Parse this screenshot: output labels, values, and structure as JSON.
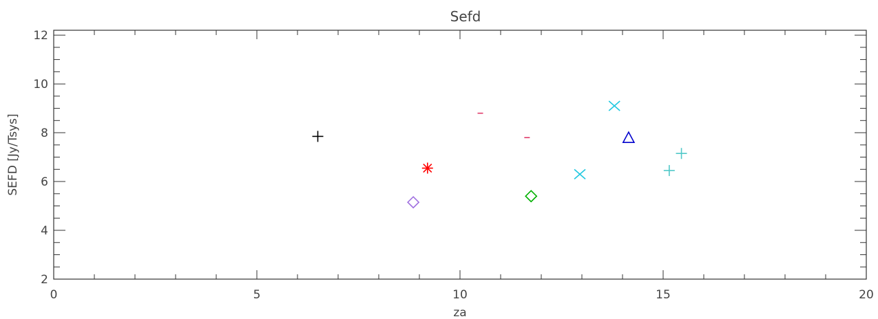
{
  "chart_data": {
    "type": "scatter",
    "title": "Sefd",
    "xlabel": "za",
    "ylabel": "SEFD [Jy/Tsys]",
    "xlim": [
      0,
      20
    ],
    "ylim": [
      2,
      12.2
    ],
    "x_ticks": [
      "0",
      "5",
      "10",
      "15",
      "20"
    ],
    "y_ticks": [
      "2",
      "4",
      "6",
      "8",
      "10",
      "12"
    ],
    "grid": false,
    "legend": "none",
    "points": [
      {
        "x": 6.5,
        "y": 7.85,
        "symbol": "plus",
        "color": "#000000"
      },
      {
        "x": 8.85,
        "y": 5.15,
        "symbol": "diamond",
        "color": "#a070e0"
      },
      {
        "x": 9.2,
        "y": 6.55,
        "symbol": "asterisk",
        "color": "#ff0000"
      },
      {
        "x": 10.5,
        "y": 8.8,
        "symbol": "dash",
        "color": "#e03a6a"
      },
      {
        "x": 11.65,
        "y": 7.8,
        "symbol": "dash",
        "color": "#e03a6a"
      },
      {
        "x": 11.75,
        "y": 5.4,
        "symbol": "diamond",
        "color": "#00b000"
      },
      {
        "x": 12.95,
        "y": 6.3,
        "symbol": "x",
        "color": "#20c8e0"
      },
      {
        "x": 13.8,
        "y": 9.1,
        "symbol": "x",
        "color": "#20c8e0"
      },
      {
        "x": 14.15,
        "y": 7.8,
        "symbol": "triangle",
        "color": "#0000cc"
      },
      {
        "x": 15.15,
        "y": 6.45,
        "symbol": "plus",
        "color": "#50c8c8"
      },
      {
        "x": 15.45,
        "y": 7.15,
        "symbol": "plus",
        "color": "#50c8c8"
      }
    ]
  }
}
